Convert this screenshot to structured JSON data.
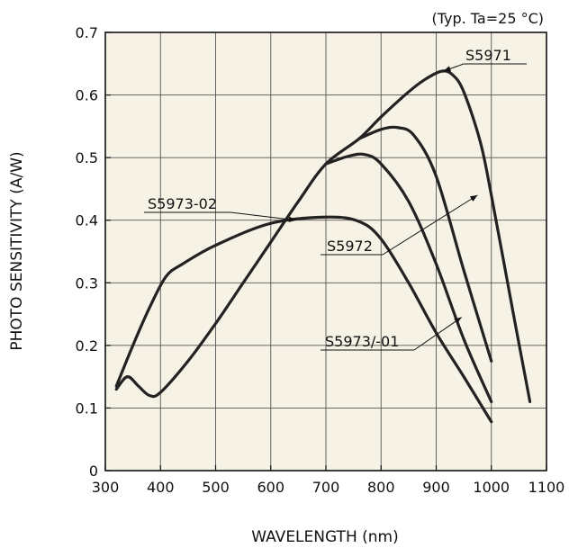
{
  "chart_data": {
    "type": "line",
    "title": "",
    "note": "(Typ. Ta=25 °C)",
    "xlabel": "WAVELENGTH (nm)",
    "ylabel": "PHOTO SENSITIVITY (A/W)",
    "xlim": [
      300,
      1100
    ],
    "ylim": [
      0,
      0.7
    ],
    "xticks": [
      300,
      400,
      500,
      600,
      700,
      800,
      900,
      1000,
      1100
    ],
    "yticks": [
      0,
      0.1,
      0.2,
      0.3,
      0.4,
      0.5,
      0.6,
      0.7
    ],
    "ytick_labels": [
      "0",
      "0.1",
      "0.2",
      "0.3",
      "0.4",
      "0.5",
      "0.6",
      "0.7"
    ],
    "grid": true,
    "legend": "none",
    "background": "#f6f2e6",
    "line_color": "#222222",
    "series": [
      {
        "name": "S5971",
        "x": [
          320,
          340,
          360,
          380,
          400,
          450,
          500,
          550,
          600,
          650,
          700,
          760,
          800,
          850,
          880,
          910,
          930,
          950,
          980,
          1000,
          1040,
          1070
        ],
        "y": [
          0.13,
          0.15,
          0.135,
          0.12,
          0.125,
          0.175,
          0.235,
          0.3,
          0.365,
          0.43,
          0.49,
          0.53,
          0.565,
          0.605,
          0.625,
          0.638,
          0.632,
          0.605,
          0.525,
          0.44,
          0.25,
          0.11
        ]
      },
      {
        "name": "S5972",
        "x": [
          760,
          800,
          830,
          860,
          900,
          950,
          1000
        ],
        "y": [
          0.53,
          0.545,
          0.548,
          0.535,
          0.47,
          0.32,
          0.175
        ]
      },
      {
        "name": "S5973/-01",
        "x": [
          700,
          740,
          770,
          800,
          850,
          900,
          950,
          1000
        ],
        "y": [
          0.49,
          0.502,
          0.505,
          0.49,
          0.43,
          0.33,
          0.21,
          0.11
        ]
      },
      {
        "name": "S5973-02",
        "x": [
          320,
          350,
          380,
          410,
          440,
          500,
          600,
          700,
          760,
          800,
          850,
          900,
          950,
          1000
        ],
        "y": [
          0.135,
          0.2,
          0.26,
          0.31,
          0.33,
          0.36,
          0.395,
          0.405,
          0.398,
          0.37,
          0.3,
          0.22,
          0.15,
          0.078
        ]
      }
    ],
    "annotations": [
      {
        "series": "S5971",
        "text": "S5971",
        "point": [
          913,
          0.638
        ]
      },
      {
        "series": "S5972",
        "text": "S5972",
        "point": [
          975,
          0.44
        ]
      },
      {
        "series": "S5973/-01",
        "text": "S5973/-01",
        "point": [
          946,
          0.245
        ]
      },
      {
        "series": "S5973-02",
        "text": "S5973-02",
        "point": [
          646,
          0.4
        ]
      }
    ]
  }
}
